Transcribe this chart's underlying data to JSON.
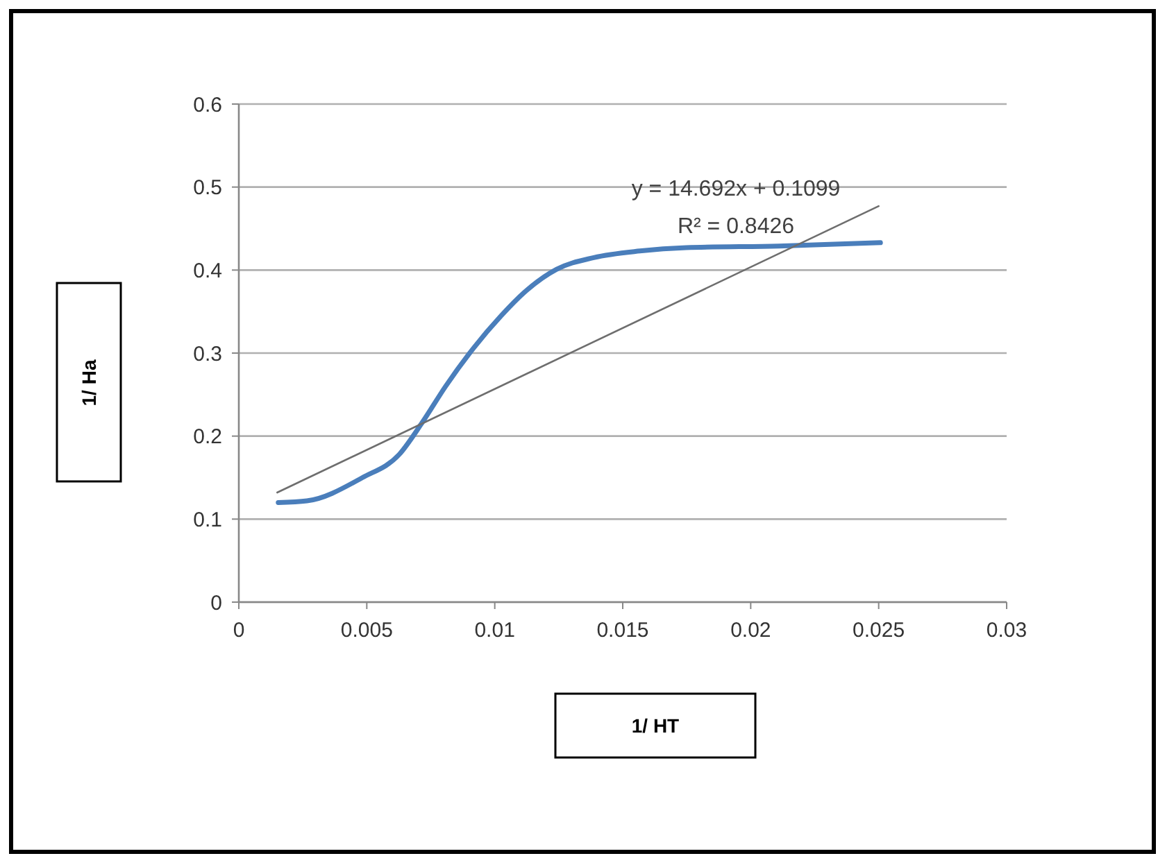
{
  "chart_data": {
    "type": "line",
    "xlabel": "1/ HT",
    "ylabel": "1/ Ha",
    "xlim": [
      0,
      0.03
    ],
    "xticks": [
      0,
      0.005,
      0.01,
      0.015,
      0.02,
      0.025,
      0.03
    ],
    "ylim": [
      0,
      0.6
    ],
    "yticks": [
      0,
      0.1,
      0.2,
      0.3,
      0.4,
      0.5,
      0.6
    ],
    "grid": "y",
    "marker": "none",
    "line_style": "solid",
    "series": [
      {
        "color": "#4a7ebb",
        "x": [
          0.00154,
          0.00266,
          0.00483,
          0.00627,
          0.00718,
          0.00808,
          0.00917,
          0.01025,
          0.01115,
          0.01242,
          0.01387,
          0.01567,
          0.01748,
          0.0211,
          0.02507
        ],
        "values": [
          0.12,
          0.122,
          0.15,
          0.178,
          0.217,
          0.26,
          0.306,
          0.345,
          0.373,
          0.401,
          0.415,
          0.423,
          0.427,
          0.429,
          0.433
        ]
      },
      {
        "color": "#6e6e6e",
        "x": [
          0.0015,
          0.025
        ],
        "values": [
          0.132,
          0.477
        ]
      }
    ],
    "annotations": [
      "y = 14.692x + 0.1099",
      "R² = 0.8426"
    ]
  }
}
